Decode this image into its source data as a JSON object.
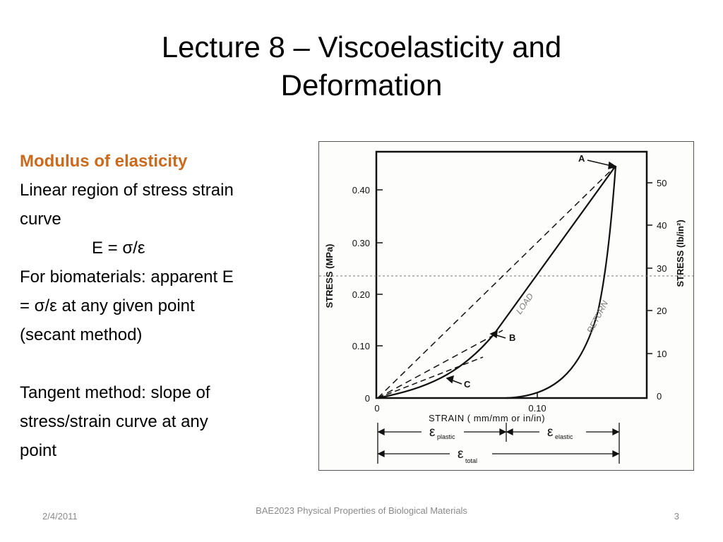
{
  "slide": {
    "title": "Lecture 8 – Viscoelasticity and Deformation",
    "lines": [
      "Modulus of elasticity",
      "Linear region of stress strain",
      "curve",
      "E = σ/ε",
      "For biomaterials: apparent E",
      "= σ/ε at any given point",
      "(secant method)",
      "Tangent method: slope of",
      "stress/strain curve at any",
      "point"
    ],
    "footer": {
      "date": "2/4/2011",
      "course": "BAE2023 Physical Properties of Biological Materials",
      "page": "3"
    }
  },
  "figure": {
    "left_axis_label": "STRESS (MPa)",
    "right_axis_label": "STRESS (lb/in²)",
    "x_axis_label": "STRAIN ( mm/mm or in/in)",
    "left_ticks": [
      "0",
      "0.10",
      "0.20",
      "0.30",
      "0.40"
    ],
    "right_ticks": [
      "0",
      "10",
      "20",
      "30",
      "40",
      "50"
    ],
    "x_ticks": [
      "0",
      "0.10"
    ],
    "point_labels": [
      "A",
      "B",
      "C"
    ],
    "curve_labels": [
      "LOAD",
      "RETURN"
    ],
    "strain_labels": [
      {
        "symbol": "ε",
        "sub": "plastic"
      },
      {
        "symbol": "ε",
        "sub": "elastic"
      },
      {
        "symbol": "ε",
        "sub": "total"
      }
    ]
  }
}
